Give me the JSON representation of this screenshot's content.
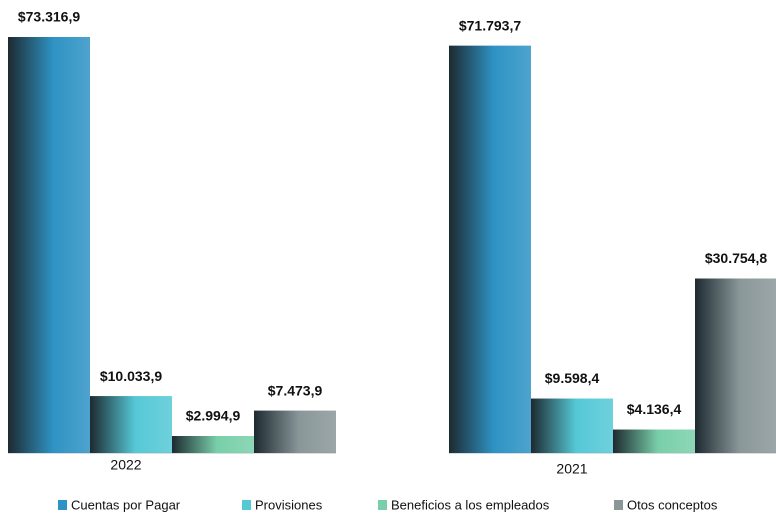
{
  "chart_data": {
    "type": "bar",
    "categories": [
      "2022",
      "2021"
    ],
    "series": [
      {
        "name": "Cuentas por Pagar",
        "color": "#2e93c4",
        "values": [
          73316.9,
          71793.7
        ],
        "value_labels": [
          "$73.316,9",
          "$71.793,7"
        ]
      },
      {
        "name": "Provisiones",
        "color": "#55c8d6",
        "values": [
          10033.9,
          9598.4
        ],
        "value_labels": [
          "$10.033,9",
          "$9.598,4"
        ]
      },
      {
        "name": "Beneficios a los empleados",
        "color": "#79cfaa",
        "values": [
          2994.9,
          4136.4
        ],
        "value_labels": [
          "$2.994,9",
          "$4.136,4"
        ]
      },
      {
        "name": "Otos conceptos",
        "color": "#8a9799",
        "values": [
          7473.9,
          30754.8
        ],
        "value_labels": [
          "$7.473,9",
          "$30.754,8"
        ]
      }
    ]
  }
}
